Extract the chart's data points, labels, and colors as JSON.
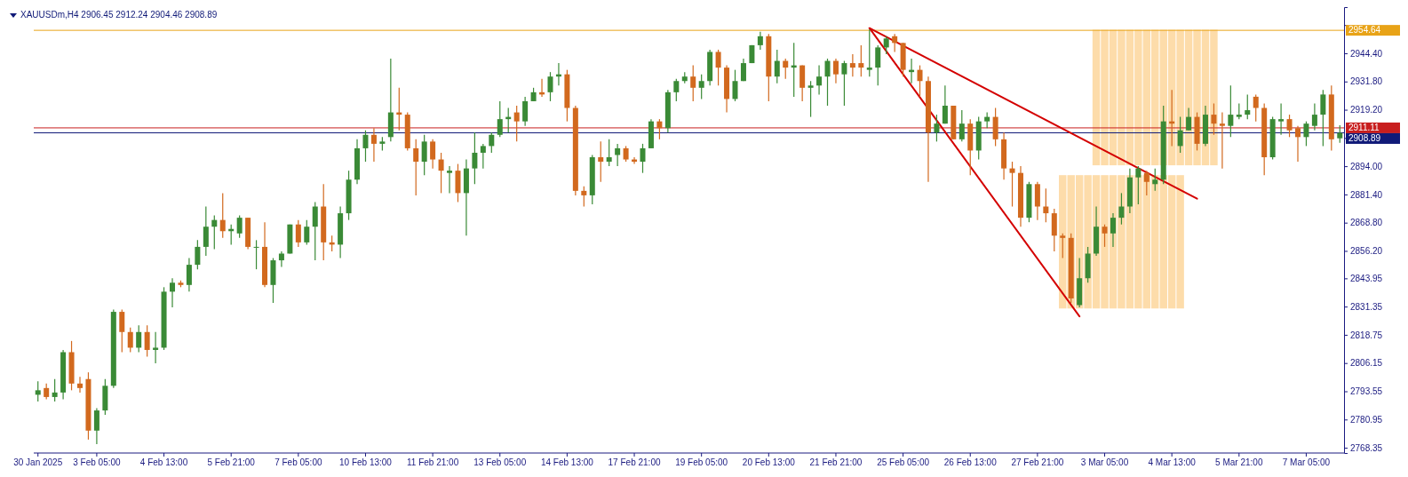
{
  "chart_data": {
    "type": "candlestick",
    "title": "XAUUSDm,H4 2906.45 2912.24 2904.46 2908.89",
    "categories": [
      "30 Jan 2025",
      null,
      null,
      null,
      null,
      null,
      null,
      "3 Feb 05:00",
      null,
      null,
      null,
      null,
      null,
      null,
      null,
      "4 Feb 13:00",
      null,
      null,
      null,
      null,
      null,
      null,
      null,
      "5 Feb 21:00",
      null,
      null,
      null,
      null,
      null,
      null,
      null,
      "7 Feb 05:00",
      null,
      null,
      null,
      null,
      null,
      null,
      null,
      "10 Feb 13:00",
      null,
      null,
      null,
      null,
      null,
      null,
      null,
      "11 Feb 21:00",
      null,
      null,
      null,
      null,
      null,
      null,
      null,
      "13 Feb 05:00",
      null,
      null,
      null,
      null,
      null,
      null,
      null,
      "14 Feb 13:00",
      null,
      null,
      null,
      null,
      null,
      null,
      null,
      "17 Feb 21:00",
      null,
      null,
      null,
      null,
      null,
      null,
      null,
      "19 Feb 05:00",
      null,
      null,
      null,
      null,
      null,
      null,
      null,
      "20 Feb 13:00",
      null,
      null,
      null,
      null,
      null,
      null,
      null,
      "21 Feb 21:00",
      null,
      null,
      null,
      null,
      null,
      null,
      null,
      "25 Feb 05:00",
      null,
      null,
      null,
      null,
      null,
      null,
      null,
      "26 Feb 13:00",
      null,
      null,
      null,
      null,
      null,
      null,
      null,
      "27 Feb 21:00",
      null,
      null,
      null,
      null,
      null,
      null,
      null,
      "3 Mar 05:00",
      null,
      null,
      null,
      null,
      null,
      null,
      null,
      "4 Mar 13:00",
      null,
      null,
      null,
      null,
      null,
      null,
      null,
      "5 Mar 21:00",
      null,
      null,
      null,
      null,
      null,
      null,
      null,
      "7 Mar 05:00",
      null,
      null,
      null,
      null
    ],
    "ohlc": [
      [
        2792,
        2798,
        2789,
        2794
      ],
      [
        2795,
        2797,
        2790,
        2791
      ],
      [
        2791,
        2799,
        2789,
        2793
      ],
      [
        2793,
        2812,
        2790,
        2811
      ],
      [
        2811,
        2816,
        2794,
        2797
      ],
      [
        2797,
        2800,
        2793,
        2795
      ],
      [
        2799,
        2802,
        2772,
        2776
      ],
      [
        2776,
        2786,
        2770,
        2785
      ],
      [
        2785,
        2799,
        2783,
        2796
      ],
      [
        2796,
        2830,
        2795,
        2829
      ],
      [
        2829,
        2830,
        2811,
        2820
      ],
      [
        2820,
        2822,
        2811,
        2813
      ],
      [
        2813,
        2823,
        2811,
        2820
      ],
      [
        2820,
        2823,
        2809,
        2812
      ],
      [
        2812,
        2820,
        2806,
        2813
      ],
      [
        2813,
        2840,
        2812,
        2838
      ],
      [
        2838,
        2844,
        2831,
        2842
      ],
      [
        2842,
        2843,
        2840,
        2841
      ],
      [
        2841,
        2853,
        2838,
        2850
      ],
      [
        2850,
        2861,
        2848,
        2858
      ],
      [
        2858,
        2876,
        2854,
        2867
      ],
      [
        2867,
        2872,
        2857,
        2870
      ],
      [
        2870,
        2882,
        2862,
        2865
      ],
      [
        2865,
        2868,
        2859,
        2866
      ],
      [
        2864,
        2872,
        2862,
        2871
      ],
      [
        2871,
        2871,
        2857,
        2858
      ],
      [
        2858,
        2861,
        2848,
        2858
      ],
      [
        2858,
        2869,
        2840,
        2841
      ],
      [
        2841,
        2853,
        2833,
        2852
      ],
      [
        2852,
        2856,
        2849,
        2855
      ],
      [
        2855,
        2868,
        2855,
        2868
      ],
      [
        2868,
        2870,
        2858,
        2860
      ],
      [
        2860,
        2870,
        2859,
        2867
      ],
      [
        2867,
        2878,
        2852,
        2876
      ],
      [
        2876,
        2886,
        2852,
        2860
      ],
      [
        2860,
        2863,
        2856,
        2859
      ],
      [
        2859,
        2876,
        2853,
        2873
      ],
      [
        2873,
        2892,
        2870,
        2888
      ],
      [
        2888,
        2906,
        2886,
        2902
      ],
      [
        2902,
        2910,
        2896,
        2908
      ],
      [
        2908,
        2911,
        2896,
        2904
      ],
      [
        2904,
        2907,
        2901,
        2905
      ],
      [
        2907,
        2942,
        2905,
        2918
      ],
      [
        2918,
        2929,
        2910,
        2917
      ],
      [
        2917,
        2918,
        2901,
        2902
      ],
      [
        2902,
        2906,
        2881,
        2896
      ],
      [
        2896,
        2908,
        2890,
        2905
      ],
      [
        2905,
        2906,
        2893,
        2897
      ],
      [
        2897,
        2900,
        2882,
        2892
      ],
      [
        2891,
        2894,
        2882,
        2892
      ],
      [
        2892,
        2895,
        2878,
        2882
      ],
      [
        2882,
        2897,
        2863,
        2893
      ],
      [
        2893,
        2909,
        2886,
        2900
      ],
      [
        2900,
        2904,
        2893,
        2903
      ],
      [
        2903,
        2909,
        2900,
        2908
      ],
      [
        2908,
        2923,
        2907,
        2915
      ],
      [
        2915,
        2920,
        2909,
        2916
      ],
      [
        2918,
        2921,
        2905,
        2914
      ],
      [
        2914,
        2925,
        2912,
        2923
      ],
      [
        2923,
        2929,
        2923,
        2927
      ],
      [
        2927,
        2933,
        2925,
        2926
      ],
      [
        2927,
        2936,
        2923,
        2934
      ],
      [
        2934,
        2940,
        2930,
        2935
      ],
      [
        2935,
        2937,
        2914,
        2920
      ],
      [
        2920,
        2921,
        2881,
        2883
      ],
      [
        2883,
        2885,
        2876,
        2881
      ],
      [
        2881,
        2899,
        2877,
        2898
      ],
      [
        2898,
        2905,
        2887,
        2896
      ],
      [
        2896,
        2906,
        2894,
        2898
      ],
      [
        2899,
        2904,
        2894,
        2902
      ],
      [
        2902,
        2903,
        2896,
        2897
      ],
      [
        2897,
        2898,
        2895,
        2896
      ],
      [
        2896,
        2904,
        2891,
        2902
      ],
      [
        2902,
        2915,
        2902,
        2914
      ],
      [
        2914,
        2915,
        2906,
        2911
      ],
      [
        2911,
        2928,
        2909,
        2927
      ],
      [
        2927,
        2933,
        2923,
        2932
      ],
      [
        2932,
        2936,
        2931,
        2934
      ],
      [
        2934,
        2939,
        2923,
        2929
      ],
      [
        2929,
        2935,
        2924,
        2932
      ],
      [
        2932,
        2946,
        2930,
        2945
      ],
      [
        2945,
        2946,
        2930,
        2938
      ],
      [
        2938,
        2939,
        2918,
        2924
      ],
      [
        2924,
        2937,
        2923,
        2932
      ],
      [
        2932,
        2942,
        2932,
        2940
      ],
      [
        2940,
        2948,
        2940,
        2948
      ],
      [
        2948,
        2954,
        2946,
        2952
      ],
      [
        2952,
        2953,
        2923,
        2934
      ],
      [
        2934,
        2946,
        2931,
        2941
      ],
      [
        2941,
        2942,
        2933,
        2938
      ],
      [
        2938,
        2949,
        2925,
        2939
      ],
      [
        2939,
        2939,
        2923,
        2929
      ],
      [
        2929,
        2932,
        2916,
        2930
      ],
      [
        2930,
        2939,
        2926,
        2934
      ],
      [
        2934,
        2942,
        2921,
        2941
      ],
      [
        2941,
        2942,
        2931,
        2935
      ],
      [
        2935,
        2941,
        2921,
        2940
      ],
      [
        2940,
        2944,
        2934,
        2938
      ],
      [
        2940,
        2948,
        2934,
        2938
      ],
      [
        2937,
        2955,
        2934,
        2938
      ],
      [
        2938,
        2948,
        2930,
        2947
      ],
      [
        2947,
        2952,
        2944,
        2951
      ],
      [
        2952,
        2953,
        2945,
        2949
      ],
      [
        2949,
        2949,
        2934,
        2937
      ],
      [
        2936,
        2942,
        2931,
        2937
      ],
      [
        2937,
        2939,
        2925,
        2932
      ],
      [
        2932,
        2934,
        2887,
        2909
      ],
      [
        2909,
        2917,
        2905,
        2913
      ],
      [
        2913,
        2930,
        2913,
        2921
      ],
      [
        2921,
        2921,
        2906,
        2906
      ],
      [
        2906,
        2919,
        2905,
        2913
      ],
      [
        2913,
        2915,
        2890,
        2901
      ],
      [
        2901,
        2916,
        2897,
        2914
      ],
      [
        2914,
        2918,
        2911,
        2916
      ],
      [
        2916,
        2920,
        2903,
        2906
      ],
      [
        2906,
        2909,
        2888,
        2893
      ],
      [
        2893,
        2896,
        2876,
        2891
      ],
      [
        2891,
        2894,
        2867,
        2871
      ],
      [
        2871,
        2887,
        2869,
        2886
      ],
      [
        2886,
        2887,
        2870,
        2876
      ],
      [
        2876,
        2884,
        2869,
        2873
      ],
      [
        2873,
        2875,
        2856,
        2863
      ],
      [
        2863,
        2864,
        2853,
        2862
      ],
      [
        2862,
        2864,
        2833,
        2835
      ],
      [
        2832,
        2853,
        2831,
        2844
      ],
      [
        2844,
        2858,
        2842,
        2855
      ],
      [
        2855,
        2876,
        2854,
        2867
      ],
      [
        2867,
        2868,
        2858,
        2864
      ],
      [
        2864,
        2873,
        2858,
        2871
      ],
      [
        2871,
        2882,
        2868,
        2876
      ],
      [
        2876,
        2893,
        2873,
        2889
      ],
      [
        2889,
        2894,
        2877,
        2893
      ],
      [
        2891,
        2892,
        2881,
        2887
      ],
      [
        2886,
        2893,
        2883,
        2888
      ],
      [
        2888,
        2921,
        2886,
        2914
      ],
      [
        2914,
        2928,
        2903,
        2913
      ],
      [
        2903,
        2916,
        2900,
        2910
      ],
      [
        2910,
        2920,
        2910,
        2916
      ],
      [
        2916,
        2918,
        2901,
        2904
      ],
      [
        2904,
        2921,
        2903,
        2917
      ],
      [
        2917,
        2922,
        2908,
        2913
      ],
      [
        2913,
        2918,
        2893,
        2912
      ],
      [
        2912,
        2930,
        2907,
        2917
      ],
      [
        2916,
        2922,
        2915,
        2917
      ],
      [
        2917,
        2926,
        2915,
        2919
      ],
      [
        2925,
        2926,
        2914,
        2920
      ],
      [
        2920,
        2922,
        2890,
        2898
      ],
      [
        2898,
        2916,
        2897,
        2915
      ],
      [
        2914,
        2922,
        2908,
        2915
      ],
      [
        2915,
        2917,
        2907,
        2910
      ],
      [
        2911,
        2912,
        2896,
        2907
      ],
      [
        2907,
        2914,
        2903,
        2913
      ],
      [
        2912,
        2922,
        2910,
        2917
      ],
      [
        2917,
        2928,
        2903,
        2926
      ],
      [
        2926,
        2930,
        2901,
        2906
      ],
      [
        2906.45,
        2912.24,
        2904.46,
        2908.89
      ]
    ],
    "colors": [
      "#3a8a36",
      "#d2691e",
      "#3a8a36",
      "#3a8a36",
      "#d2691e",
      "#d2691e",
      "#d2691e",
      "#3a8a36",
      "#3a8a36",
      "#3a8a36",
      "#d2691e",
      "#d2691e",
      "#3a8a36",
      "#d2691e",
      "#3a8a36",
      "#3a8a36",
      "#3a8a36",
      "#d2691e",
      "#3a8a36",
      "#3a8a36",
      "#3a8a36",
      "#3a8a36",
      "#d2691e",
      "#3a8a36",
      "#3a8a36",
      "#d2691e",
      "#3a8a36",
      "#d2691e",
      "#3a8a36",
      "#3a8a36",
      "#3a8a36",
      "#d2691e",
      "#3a8a36",
      "#3a8a36",
      "#d2691e",
      "#d2691e",
      "#3a8a36",
      "#3a8a36",
      "#3a8a36",
      "#3a8a36",
      "#d2691e",
      "#3a8a36",
      "#3a8a36",
      "#d2691e",
      "#d2691e",
      "#d2691e",
      "#3a8a36",
      "#d2691e",
      "#d2691e",
      "#3a8a36",
      "#d2691e",
      "#3a8a36",
      "#3a8a36",
      "#3a8a36",
      "#3a8a36",
      "#3a8a36",
      "#3a8a36",
      "#d2691e",
      "#3a8a36",
      "#3a8a36",
      "#d2691e",
      "#3a8a36",
      "#3a8a36",
      "#d2691e",
      "#d2691e",
      "#d2691e",
      "#3a8a36",
      "#d2691e",
      "#3a8a36",
      "#3a8a36",
      "#d2691e",
      "#d2691e",
      "#3a8a36",
      "#3a8a36",
      "#d2691e",
      "#3a8a36",
      "#3a8a36",
      "#3a8a36",
      "#d2691e",
      "#3a8a36",
      "#3a8a36",
      "#d2691e",
      "#d2691e",
      "#3a8a36",
      "#3a8a36",
      "#3a8a36",
      "#3a8a36",
      "#d2691e",
      "#3a8a36",
      "#d2691e",
      "#3a8a36",
      "#d2691e",
      "#3a8a36",
      "#3a8a36",
      "#3a8a36",
      "#d2691e",
      "#3a8a36",
      "#d2691e",
      "#d2691e",
      "#3a8a36",
      "#3a8a36",
      "#3a8a36",
      "#d2691e",
      "#d2691e",
      "#3a8a36",
      "#d2691e",
      "#d2691e",
      "#3a8a36",
      "#3a8a36",
      "#d2691e",
      "#3a8a36",
      "#d2691e",
      "#3a8a36",
      "#3a8a36",
      "#d2691e",
      "#d2691e",
      "#d2691e",
      "#d2691e",
      "#3a8a36",
      "#d2691e",
      "#d2691e",
      "#d2691e",
      "#d2691e",
      "#d2691e",
      "#3a8a36",
      "#3a8a36",
      "#3a8a36",
      "#d2691e",
      "#3a8a36",
      "#3a8a36",
      "#3a8a36",
      "#3a8a36",
      "#d2691e",
      "#3a8a36",
      "#3a8a36",
      "#d2691e",
      "#3a8a36",
      "#3a8a36",
      "#d2691e",
      "#3a8a36",
      "#d2691e",
      "#d2691e",
      "#3a8a36",
      "#3a8a36",
      "#3a8a36",
      "#d2691e",
      "#d2691e",
      "#3a8a36",
      "#3a8a36",
      "#d2691e",
      "#d2691e",
      "#3a8a36",
      "#3a8a36",
      "#3a8a36",
      "#d2691e",
      "#3a8a36"
    ],
    "series": [
      {
        "type": "bar",
        "color": "#fddcaa",
        "values": [
          null,
          null,
          null,
          null,
          null,
          null,
          null,
          null,
          null,
          null,
          null,
          null,
          null,
          null,
          null,
          null,
          null,
          null,
          null,
          null,
          null,
          null,
          null,
          null,
          null,
          null,
          null,
          null,
          null,
          null,
          null,
          null,
          null,
          null,
          null,
          null,
          null,
          null,
          null,
          null,
          null,
          null,
          null,
          null,
          null,
          null,
          null,
          null,
          null,
          null,
          null,
          null,
          null,
          null,
          null,
          null,
          null,
          null,
          null,
          null,
          null,
          null,
          null,
          null,
          null,
          null,
          null,
          null,
          null,
          null,
          null,
          null,
          null,
          null,
          null,
          null,
          null,
          null,
          null,
          null,
          null,
          null,
          null,
          null,
          null,
          null,
          null,
          null,
          null,
          null,
          null,
          null,
          null,
          null,
          null,
          null,
          null,
          null,
          null,
          null,
          null,
          null,
          null,
          null,
          null,
          null,
          null,
          null,
          null,
          null,
          null,
          null,
          null,
          null,
          null,
          null,
          null,
          null,
          null,
          null,
          null,
          null,
          59.5,
          59.5,
          59.5,
          59.5,
          59.5,
          59.5,
          59.5,
          59.5,
          59.5,
          59.5,
          59.5,
          59.5,
          59.5,
          59.5,
          59.5,
          null,
          null,
          null,
          null,
          null,
          null,
          null,
          null,
          null,
          null,
          null,
          null,
          null,
          null,
          null,
          null,
          null,
          null,
          null
        ],
        "base": [
          null,
          null,
          null,
          null,
          null,
          null,
          null,
          null,
          null,
          null,
          null,
          null,
          null,
          null,
          null,
          null,
          null,
          null,
          null,
          null,
          null,
          null,
          null,
          null,
          null,
          null,
          null,
          null,
          null,
          null,
          null,
          null,
          null,
          null,
          null,
          null,
          null,
          null,
          null,
          null,
          null,
          null,
          null,
          null,
          null,
          null,
          null,
          null,
          null,
          null,
          null,
          null,
          null,
          null,
          null,
          null,
          null,
          null,
          null,
          null,
          null,
          null,
          null,
          null,
          null,
          null,
          null,
          null,
          null,
          null,
          null,
          null,
          null,
          null,
          null,
          null,
          null,
          null,
          null,
          null,
          null,
          null,
          null,
          null,
          null,
          null,
          null,
          null,
          null,
          null,
          null,
          null,
          null,
          null,
          null,
          null,
          null,
          null,
          null,
          null,
          null,
          null,
          null,
          null,
          null,
          null,
          null,
          null,
          null,
          null,
          null,
          null,
          null,
          null,
          null,
          null,
          null,
          null,
          null,
          null,
          null,
          null,
          2830.5,
          2830.5,
          2830.5,
          2830.5,
          2830.5,
          2830.5,
          2830.5,
          2830.5,
          2830.5,
          2830.5,
          2830.5,
          2830.5,
          2830.5,
          2830.5,
          2830.5,
          null,
          null,
          null,
          null,
          null,
          null,
          null,
          null,
          null,
          null,
          null,
          null,
          null,
          null,
          null,
          null,
          null,
          null,
          null
        ]
      },
      {
        "type": "bar",
        "color": "#fddcaa",
        "values": [
          null,
          null,
          null,
          null,
          null,
          null,
          null,
          null,
          null,
          null,
          null,
          null,
          null,
          null,
          null,
          null,
          null,
          null,
          null,
          null,
          null,
          null,
          null,
          null,
          null,
          null,
          null,
          null,
          null,
          null,
          null,
          null,
          null,
          null,
          null,
          null,
          null,
          null,
          null,
          null,
          null,
          null,
          null,
          null,
          null,
          null,
          null,
          null,
          null,
          null,
          null,
          null,
          null,
          null,
          null,
          null,
          null,
          null,
          null,
          null,
          null,
          null,
          null,
          null,
          null,
          null,
          null,
          null,
          null,
          null,
          null,
          null,
          null,
          null,
          null,
          null,
          null,
          null,
          null,
          null,
          null,
          null,
          null,
          null,
          null,
          null,
          null,
          null,
          null,
          null,
          null,
          null,
          null,
          null,
          null,
          null,
          null,
          null,
          null,
          null,
          null,
          null,
          null,
          null,
          null,
          null,
          null,
          null,
          null,
          null,
          null,
          null,
          null,
          null,
          null,
          null,
          null,
          null,
          null,
          null,
          null,
          null,
          null,
          null,
          null,
          null,
          60.5,
          60.5,
          60.5,
          60.5,
          60.5,
          60.5,
          60.5,
          60.5,
          60.5,
          60.5,
          60.5,
          60.5,
          60.5,
          60.5,
          60.5,
          null,
          null,
          null,
          null,
          null,
          null,
          null,
          null,
          null,
          null,
          null,
          null,
          null,
          null,
          null
        ],
        "base": [
          null,
          null,
          null,
          null,
          null,
          null,
          null,
          null,
          null,
          null,
          null,
          null,
          null,
          null,
          null,
          null,
          null,
          null,
          null,
          null,
          null,
          null,
          null,
          null,
          null,
          null,
          null,
          null,
          null,
          null,
          null,
          null,
          null,
          null,
          null,
          null,
          null,
          null,
          null,
          null,
          null,
          null,
          null,
          null,
          null,
          null,
          null,
          null,
          null,
          null,
          null,
          null,
          null,
          null,
          null,
          null,
          null,
          null,
          null,
          null,
          null,
          null,
          null,
          null,
          null,
          null,
          null,
          null,
          null,
          null,
          null,
          null,
          null,
          null,
          null,
          null,
          null,
          null,
          null,
          null,
          null,
          null,
          null,
          null,
          null,
          null,
          null,
          null,
          null,
          null,
          null,
          null,
          null,
          null,
          null,
          null,
          null,
          null,
          null,
          null,
          null,
          null,
          null,
          null,
          null,
          null,
          null,
          null,
          null,
          null,
          null,
          null,
          null,
          null,
          null,
          null,
          null,
          null,
          null,
          null,
          null,
          null,
          null,
          null,
          null,
          null,
          2894.4,
          2894.4,
          2894.4,
          2894.4,
          2894.4,
          2894.4,
          2894.4,
          2894.4,
          2894.4,
          2894.4,
          2894.4,
          2894.4,
          2894.4,
          2894.4,
          2894.4,
          null,
          null,
          null,
          null,
          null,
          null,
          null,
          null,
          null,
          null,
          null,
          null,
          null,
          null,
          null
        ]
      },
      {
        "type": "line",
        "color": "#d40000",
        "values": [
          null,
          null,
          null,
          null,
          null,
          null,
          null,
          null,
          null,
          null,
          null,
          null,
          null,
          null,
          null,
          null,
          null,
          null,
          null,
          null,
          null,
          null,
          null,
          null,
          null,
          null,
          null,
          null,
          null,
          null,
          null,
          null,
          null,
          null,
          null,
          null,
          null,
          null,
          null,
          null,
          null,
          null,
          null,
          null,
          null,
          null,
          null,
          null,
          null,
          null,
          null,
          null,
          null,
          null,
          null,
          null,
          null,
          null,
          null,
          null,
          null,
          null,
          null,
          null,
          null,
          null,
          null,
          null,
          null,
          null,
          null,
          null,
          null,
          null,
          null,
          null,
          null,
          null,
          null,
          null,
          null,
          null,
          null,
          null,
          null,
          null,
          null,
          null,
          null,
          null,
          null,
          null,
          null,
          null,
          null,
          null,
          null,
          null,
          null,
          2955.6,
          null,
          null,
          null,
          null,
          null,
          null,
          null,
          null,
          null,
          null,
          null,
          null,
          null,
          null,
          null,
          null,
          null,
          null,
          null,
          null,
          null,
          null,
          null,
          null,
          2827,
          null,
          null,
          null,
          null,
          null,
          null,
          null,
          null,
          null,
          null,
          null,
          null,
          null,
          null,
          null,
          null,
          null,
          null,
          null,
          null,
          null,
          null,
          null,
          null,
          null,
          null,
          null,
          null,
          null,
          null,
          null
        ]
      },
      {
        "type": "line",
        "color": "#d40000",
        "values": [
          null,
          null,
          null,
          null,
          null,
          null,
          null,
          null,
          null,
          null,
          null,
          null,
          null,
          null,
          null,
          null,
          null,
          null,
          null,
          null,
          null,
          null,
          null,
          null,
          null,
          null,
          null,
          null,
          null,
          null,
          null,
          null,
          null,
          null,
          null,
          null,
          null,
          null,
          null,
          null,
          null,
          null,
          null,
          null,
          null,
          null,
          null,
          null,
          null,
          null,
          null,
          null,
          null,
          null,
          null,
          null,
          null,
          null,
          null,
          null,
          null,
          null,
          null,
          null,
          null,
          null,
          null,
          null,
          null,
          null,
          null,
          null,
          null,
          null,
          null,
          null,
          null,
          null,
          null,
          null,
          null,
          null,
          null,
          null,
          null,
          null,
          null,
          null,
          null,
          null,
          null,
          null,
          null,
          null,
          null,
          null,
          null,
          null,
          null,
          2955.6,
          null,
          null,
          null,
          null,
          null,
          null,
          null,
          null,
          null,
          null,
          null,
          null,
          null,
          null,
          null,
          null,
          null,
          null,
          null,
          null,
          null,
          null,
          null,
          null,
          null,
          null,
          null,
          null,
          null,
          null,
          null,
          null,
          null,
          null,
          null,
          null,
          null,
          null,
          2879.5,
          null,
          null,
          null,
          null,
          null,
          null,
          null,
          null,
          null,
          null,
          null,
          null,
          null,
          null,
          null,
          null,
          null
        ]
      }
    ],
    "ref_lines": [
      {
        "axis": "y",
        "value": 2954.64,
        "label": "2954.64",
        "color": "#e8a317"
      },
      {
        "axis": "y",
        "value": 2911.11,
        "label": "2911.11",
        "color": "#c81e1e"
      },
      {
        "axis": "y",
        "value": 2908.89,
        "label": "2908.89",
        "color": "#101a78"
      }
    ],
    "ylim": [
      2766,
      2965
    ],
    "yticks": [
      {
        "value": 2957,
        "label": null
      },
      {
        "value": 2944.4,
        "label": "2944.40"
      },
      {
        "value": 2931.8,
        "label": "2931.80"
      },
      {
        "value": 2919.2,
        "label": "2919.20"
      },
      {
        "value": 2906.6,
        "label": null
      },
      {
        "value": 2894,
        "label": "2894.00"
      },
      {
        "value": 2881.4,
        "label": "2881.40"
      },
      {
        "value": 2868.8,
        "label": "2868.80"
      },
      {
        "value": 2856.2,
        "label": "2856.20"
      },
      {
        "value": 2843.95,
        "label": "2843.95"
      },
      {
        "value": 2831.35,
        "label": "2831.35"
      },
      {
        "value": 2818.75,
        "label": "2818.75"
      },
      {
        "value": 2806.15,
        "label": "2806.15"
      },
      {
        "value": 2793.55,
        "label": "2793.55"
      },
      {
        "value": 2780.95,
        "label": "2780.95"
      },
      {
        "value": 2768.35,
        "label": "2768.35"
      }
    ]
  }
}
